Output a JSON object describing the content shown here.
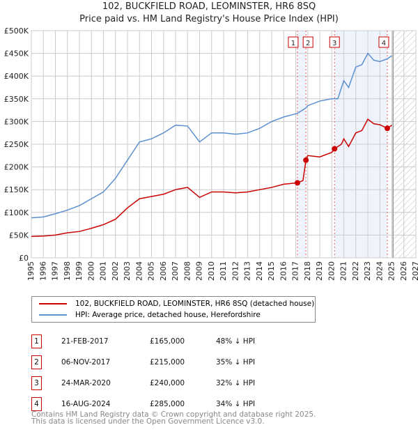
{
  "title": "102, BUCKFIELD ROAD, LEOMINSTER, HR6 8SQ",
  "subtitle": "Price paid vs. HM Land Registry's House Price Index (HPI)",
  "chart_data": {
    "type": "line",
    "xlim": [
      1995,
      2027
    ],
    "ylim": [
      0,
      500000
    ],
    "x_ticks": [
      "1995",
      "1996",
      "1997",
      "1998",
      "1999",
      "2000",
      "2001",
      "2002",
      "2003",
      "2004",
      "2005",
      "2006",
      "2007",
      "2008",
      "2009",
      "2010",
      "2011",
      "2012",
      "2013",
      "2014",
      "2015",
      "2016",
      "2017",
      "2018",
      "2019",
      "2020",
      "2021",
      "2022",
      "2023",
      "2024",
      "2025",
      "2026",
      "2027"
    ],
    "y_ticks": [
      {
        "v": 0,
        "label": "£0"
      },
      {
        "v": 50000,
        "label": "£50K"
      },
      {
        "v": 100000,
        "label": "£100K"
      },
      {
        "v": 150000,
        "label": "£150K"
      },
      {
        "v": 200000,
        "label": "£200K"
      },
      {
        "v": 250000,
        "label": "£250K"
      },
      {
        "v": 300000,
        "label": "£300K"
      },
      {
        "v": 350000,
        "label": "£350K"
      },
      {
        "v": 400000,
        "label": "£400K"
      },
      {
        "v": 450000,
        "label": "£450K"
      },
      {
        "v": 500000,
        "label": "£500K"
      }
    ],
    "series": [
      {
        "name": "102, BUCKFIELD ROAD, LEOMINSTER, HR6 8SQ (detached house)",
        "color": "#cc0000",
        "x": [
          1995,
          1996,
          1997,
          1998,
          1999,
          2000,
          2001,
          2002,
          2003,
          2004,
          2005,
          2006,
          2007,
          2008,
          2009,
          2010,
          2011,
          2012,
          2013,
          2014,
          2015,
          2016,
          2017.14,
          2017.6,
          2017.85,
          2018,
          2019,
          2020,
          2020.23,
          2020.8,
          2021,
          2021.4,
          2022,
          2022.5,
          2023,
          2023.5,
          2024,
          2024.62,
          2025
        ],
        "y": [
          47000,
          48000,
          50000,
          55000,
          58000,
          65000,
          73000,
          85000,
          110000,
          130000,
          135000,
          140000,
          150000,
          155000,
          133000,
          145000,
          145000,
          143000,
          145000,
          150000,
          155000,
          162000,
          165000,
          170000,
          215000,
          225000,
          222000,
          232000,
          240000,
          250000,
          262000,
          245000,
          275000,
          280000,
          305000,
          295000,
          293000,
          285000,
          292000
        ]
      },
      {
        "name": "HPI: Average price, detached house, Herefordshire",
        "color": "#5b8fd0",
        "x": [
          1995,
          1996,
          1997,
          1998,
          1999,
          2000,
          2001,
          2002,
          2003,
          2004,
          2005,
          2006,
          2007,
          2008,
          2009,
          2010,
          2011,
          2012,
          2013,
          2014,
          2015,
          2016,
          2017.14,
          2017.85,
          2018,
          2019,
          2020,
          2020.5,
          2021,
          2021.4,
          2022,
          2022.5,
          2023,
          2023.5,
          2024,
          2024.62,
          2025
        ],
        "y": [
          88000,
          90000,
          97000,
          105000,
          115000,
          130000,
          145000,
          175000,
          215000,
          255000,
          262000,
          275000,
          292000,
          290000,
          255000,
          275000,
          275000,
          272000,
          275000,
          285000,
          300000,
          310000,
          318000,
          330000,
          335000,
          345000,
          350000,
          350000,
          390000,
          375000,
          420000,
          425000,
          450000,
          435000,
          432000,
          438000,
          445000
        ]
      }
    ],
    "transactions": [
      {
        "id": "1",
        "x": 2017.14,
        "date": "21-FEB-2017",
        "price": "£165,000",
        "value": 165000,
        "hpi": "48% ↓ HPI"
      },
      {
        "id": "2",
        "x": 2017.85,
        "date": "06-NOV-2017",
        "price": "£215,000",
        "value": 215000,
        "hpi": "35% ↓ HPI"
      },
      {
        "id": "3",
        "x": 2020.23,
        "date": "24-MAR-2020",
        "price": "£240,000",
        "value": 240000,
        "hpi": "32% ↓ HPI"
      },
      {
        "id": "4",
        "x": 2024.62,
        "date": "16-AUG-2024",
        "price": "£285,000",
        "value": 285000,
        "hpi": "34% ↓ HPI"
      }
    ],
    "shaded": [
      [
        2017.14,
        2017.85
      ],
      [
        2020.23,
        2024.62
      ]
    ],
    "forecast_from": 2025.1,
    "legend_placement": "below"
  },
  "footer": {
    "line1": "Contains HM Land Registry data © Crown copyright and database right 2025.",
    "line2": "This data is licensed under the Open Government Licence v3.0."
  }
}
